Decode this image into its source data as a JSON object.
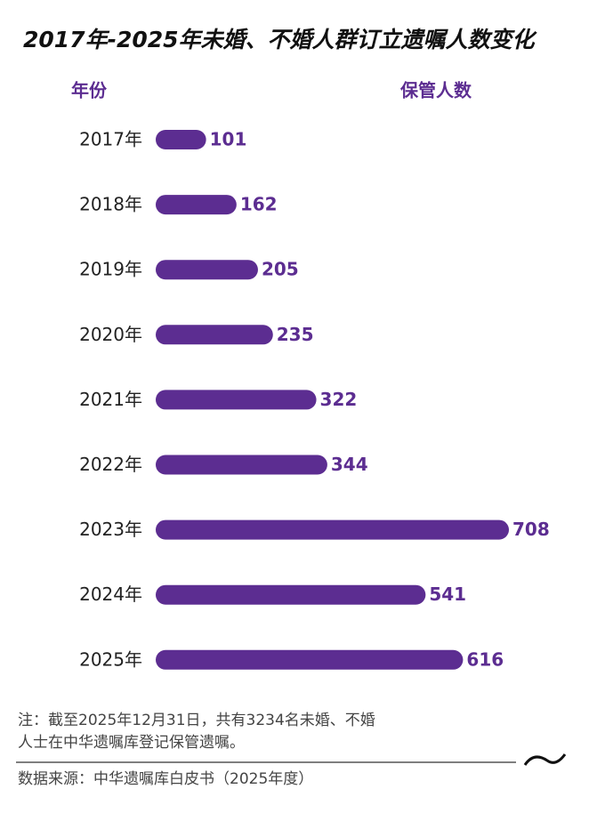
{
  "chart_data": {
    "type": "bar",
    "orientation": "horizontal",
    "title": "2017年-2025年未婚、不婚人群订立遗嘱人数变化",
    "category_header": "年份",
    "value_header": "保管人数",
    "categories": [
      "2017年",
      "2018年",
      "2019年",
      "2020年",
      "2021年",
      "2022年",
      "2023年",
      "2024年",
      "2025年"
    ],
    "values": [
      101,
      162,
      205,
      235,
      322,
      344,
      708,
      541,
      616
    ],
    "color": "#5c2d91",
    "note": [
      "注：截至2025年12月31日，共有3234名未婚、不婚",
      "人士在中华遗嘱库登记保管遗嘱。"
    ],
    "source": "数据来源：中华遗嘱库白皮书（2025年度）"
  }
}
